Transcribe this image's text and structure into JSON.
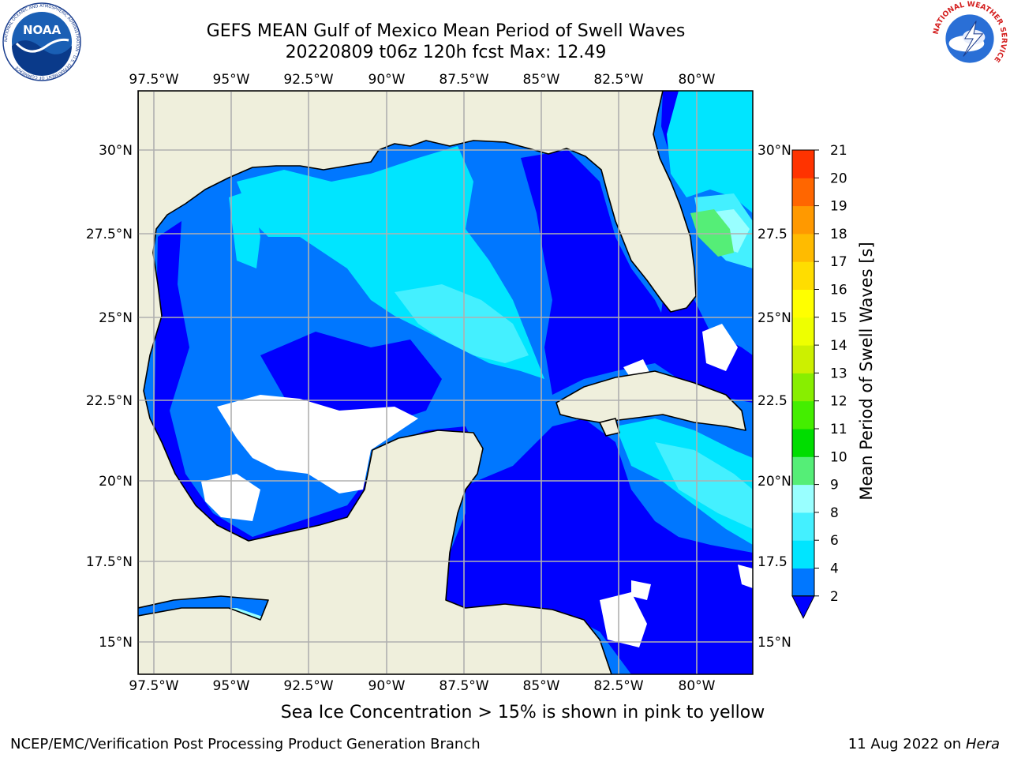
{
  "title": {
    "line1": "GEFS MEAN Gulf of Mexico Mean Period of Swell Waves",
    "line2": "20220809 t06z 120h fcst   Max: 12.49"
  },
  "map": {
    "lon_ticks": [
      "97.5°W",
      "95°W",
      "92.5°W",
      "90°W",
      "87.5°W",
      "85°W",
      "82.5°W",
      "80°W"
    ],
    "lat_ticks_left": [
      "30°N",
      "27.5°N",
      "25°N",
      "22.5°N",
      "20°N",
      "17.5°N",
      "15°N"
    ],
    "lat_ticks_right": [
      "30°N",
      "27.5",
      "25°N",
      "22.5",
      "20°N",
      "17.5",
      "15°N"
    ],
    "land_color": "#efefdc",
    "grid_color": "#b0b0b0"
  },
  "colorbar": {
    "label": "Mean Period of Swell Waves [s]",
    "ticks": [
      "2",
      "4",
      "6",
      "8",
      "9",
      "10",
      "11",
      "12",
      "13",
      "14",
      "15",
      "16",
      "17",
      "18",
      "19",
      "20",
      "21"
    ],
    "colors": [
      "#0077ff",
      "#00e5ff",
      "#44f0ff",
      "#99ffff",
      "#55ee77",
      "#00dd00",
      "#44ee00",
      "#88ee00",
      "#ccf000",
      "#eeff00",
      "#ffff00",
      "#ffdd00",
      "#ffbb00",
      "#ff9900",
      "#ff6600",
      "#ff3300"
    ],
    "under_color": "#0000ff"
  },
  "footer": {
    "note": "Sea Ice Concentration > 15% is shown in pink to yellow",
    "left": "NCEP/EMC/Verification Post Processing Product Generation Branch",
    "right_date": "11 Aug 2022 on",
    "right_host": "Hera"
  },
  "logos": {
    "noaa": "NOAA",
    "noaa_ring": "NATIONAL OCEANIC AND ATMOSPHERIC ADMINISTRATION · U.S. DEPARTMENT OF COMMERCE",
    "nws_ring": "NATIONAL WEATHER SERVICE"
  }
}
